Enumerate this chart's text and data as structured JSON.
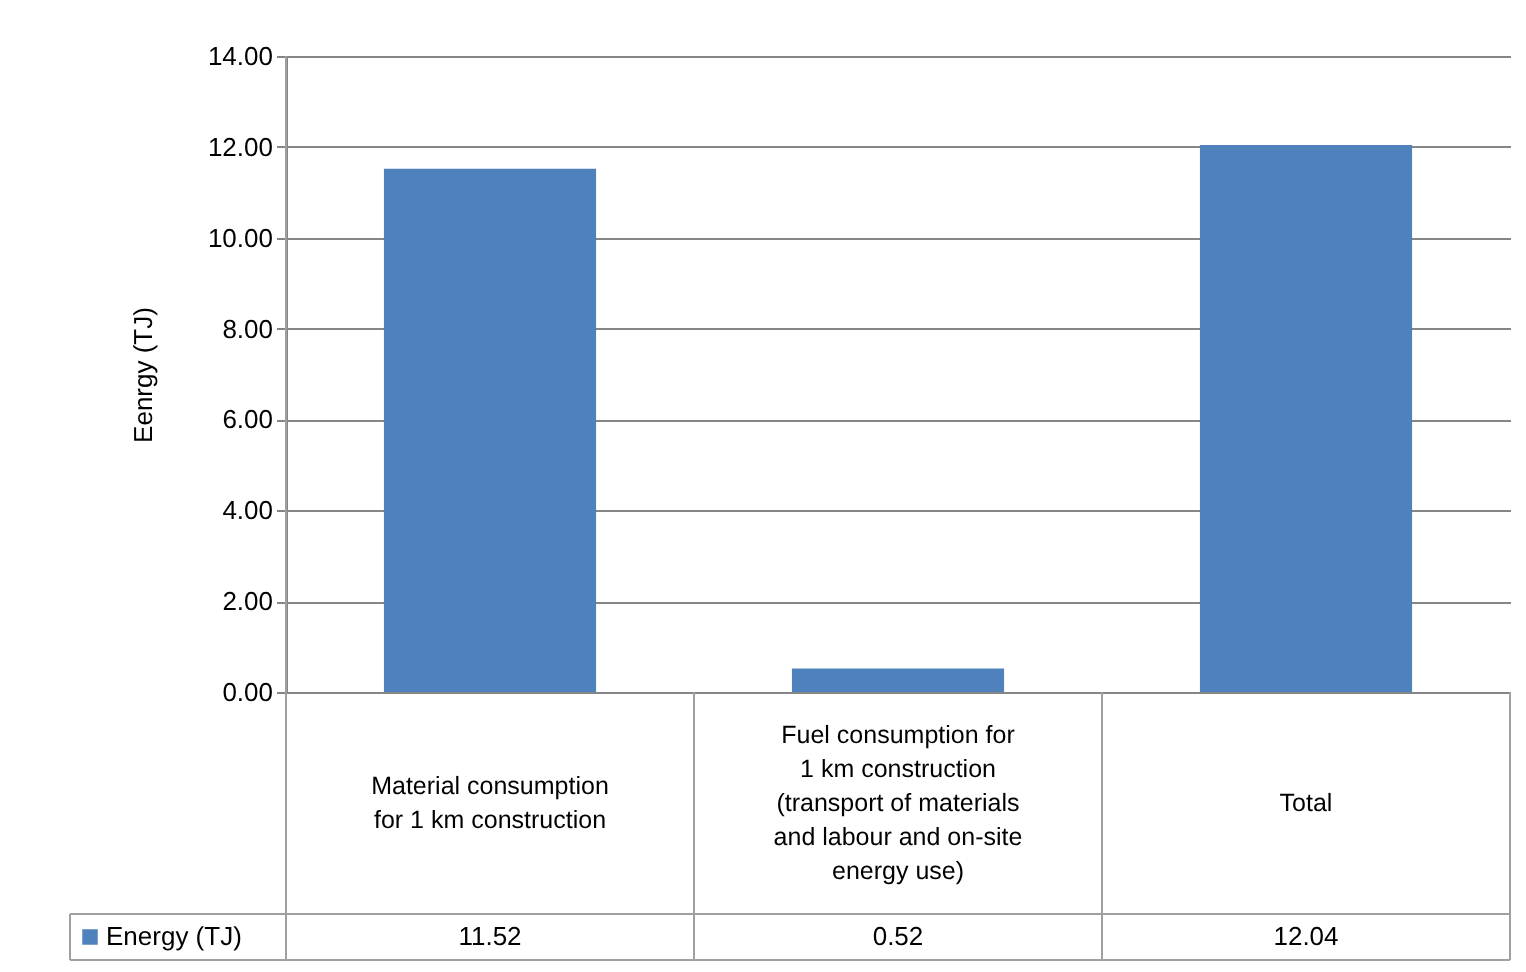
{
  "chart_data": {
    "type": "bar",
    "ylabel": "Eenrgy (TJ)",
    "categories": [
      "Material consumption\nfor 1 km construction",
      "Fuel consumption for\n1 km construction\n(transport of materials\nand labour and on-site\nenergy use)",
      "Total"
    ],
    "series": [
      {
        "name": "Energy (TJ)",
        "color": "#4f81bd",
        "values": [
          11.52,
          0.52,
          12.04
        ]
      }
    ],
    "ylim": [
      0,
      14
    ],
    "yticks": [
      {
        "value": 0,
        "label": "0.00"
      },
      {
        "value": 2,
        "label": "2.00"
      },
      {
        "value": 4,
        "label": "4.00"
      },
      {
        "value": 6,
        "label": "6.00"
      },
      {
        "value": 8,
        "label": "8.00"
      },
      {
        "value": 10,
        "label": "10.00"
      },
      {
        "value": 12,
        "label": "12.00"
      },
      {
        "value": 14,
        "label": "14.00"
      }
    ],
    "grid": "y",
    "legend": "bottom",
    "data_labels": true
  }
}
